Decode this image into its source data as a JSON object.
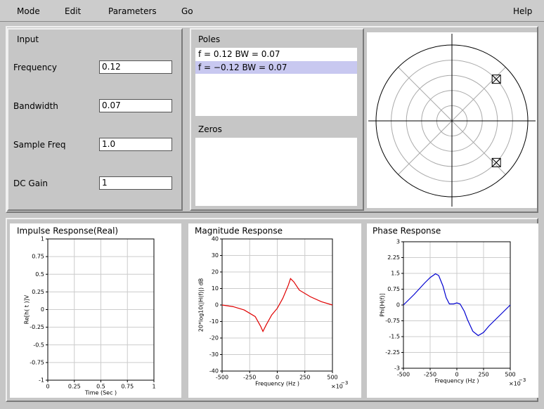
{
  "menu": [
    "Mode",
    "Edit",
    "Parameters",
    "Go"
  ],
  "help": "Help",
  "input": {
    "title": "Input",
    "fields": [
      {
        "label": "Frequency",
        "value": "0.12"
      },
      {
        "label": "Bandwidth",
        "value": "0.07"
      },
      {
        "label": "Sample Freq",
        "value": "1.0"
      },
      {
        "label": "DC Gain",
        "value": "1"
      }
    ]
  },
  "poles": {
    "title": "Poles",
    "selected": 1,
    "items": [
      {
        "text": "f = 0.12 BW = 0.07",
        "f": 0.12,
        "bw": 0.07
      },
      {
        "text": "f = −0.12 BW = 0.07",
        "f": -0.12,
        "bw": 0.07
      }
    ]
  },
  "zeros": {
    "title": "Zeros"
  },
  "chart_data": [
    {
      "type": "line",
      "title": "Impulse Response(Real)",
      "xlabel": "Time (Sec )",
      "ylabel": "Re[h( t )]V",
      "xlim": [
        0,
        1
      ],
      "xticks": [
        0,
        0.25,
        0.5,
        0.75,
        1
      ],
      "ylim": [
        -1,
        1
      ],
      "yticks": [
        -1,
        -0.75,
        -0.5,
        -0.25,
        0,
        0.25,
        0.5,
        0.75,
        1
      ],
      "grid": true
    },
    {
      "type": "line",
      "title": "Magnitude Response",
      "xlabel": "Frequency (Hz )",
      "ylabel": "20*log10(|H(f)|) dB",
      "x_multiplier": {
        "base": "×10",
        "exponent": "−3"
      },
      "xlim": [
        -500,
        500
      ],
      "xticks": [
        -500,
        -250,
        0,
        250,
        500
      ],
      "ylim": [
        -40,
        40
      ],
      "yticks": [
        -40,
        -30,
        -20,
        -10,
        0,
        10,
        20,
        30,
        40
      ],
      "grid": true,
      "x": [
        -500,
        -400,
        -300,
        -200,
        -150,
        -130,
        -100,
        -50,
        0,
        50,
        100,
        120,
        150,
        200,
        300,
        400,
        500
      ],
      "series": [
        {
          "color": "#e00000",
          "values": [
            0,
            -1,
            -3,
            -7,
            -13,
            -16,
            -12,
            -6,
            -2,
            4,
            12,
            16,
            14,
            9,
            5,
            2,
            0
          ]
        }
      ]
    },
    {
      "type": "line",
      "title": "Phase Response",
      "xlabel": "Frequency (Hz )",
      "ylabel": "Phi[H(f)]",
      "x_multiplier": {
        "base": "×10",
        "exponent": "−3"
      },
      "xlim": [
        -500,
        500
      ],
      "xticks": [
        -500,
        -250,
        0,
        250,
        500
      ],
      "ylim": [
        -3,
        3
      ],
      "yticks": [
        -3,
        -2.25,
        -1.5,
        -0.75,
        0,
        0.75,
        1.5,
        2.25,
        3
      ],
      "grid": true,
      "x": [
        -500,
        -400,
        -300,
        -250,
        -200,
        -170,
        -130,
        -100,
        -70,
        -30,
        0,
        30,
        70,
        100,
        150,
        200,
        250,
        300,
        400,
        500
      ],
      "series": [
        {
          "color": "#0000d0",
          "values": [
            0,
            0.5,
            1.05,
            1.3,
            1.48,
            1.4,
            0.9,
            0.35,
            0.05,
            0.05,
            0.1,
            0.05,
            -0.3,
            -0.7,
            -1.25,
            -1.45,
            -1.3,
            -1.0,
            -0.5,
            0
          ]
        }
      ]
    }
  ]
}
